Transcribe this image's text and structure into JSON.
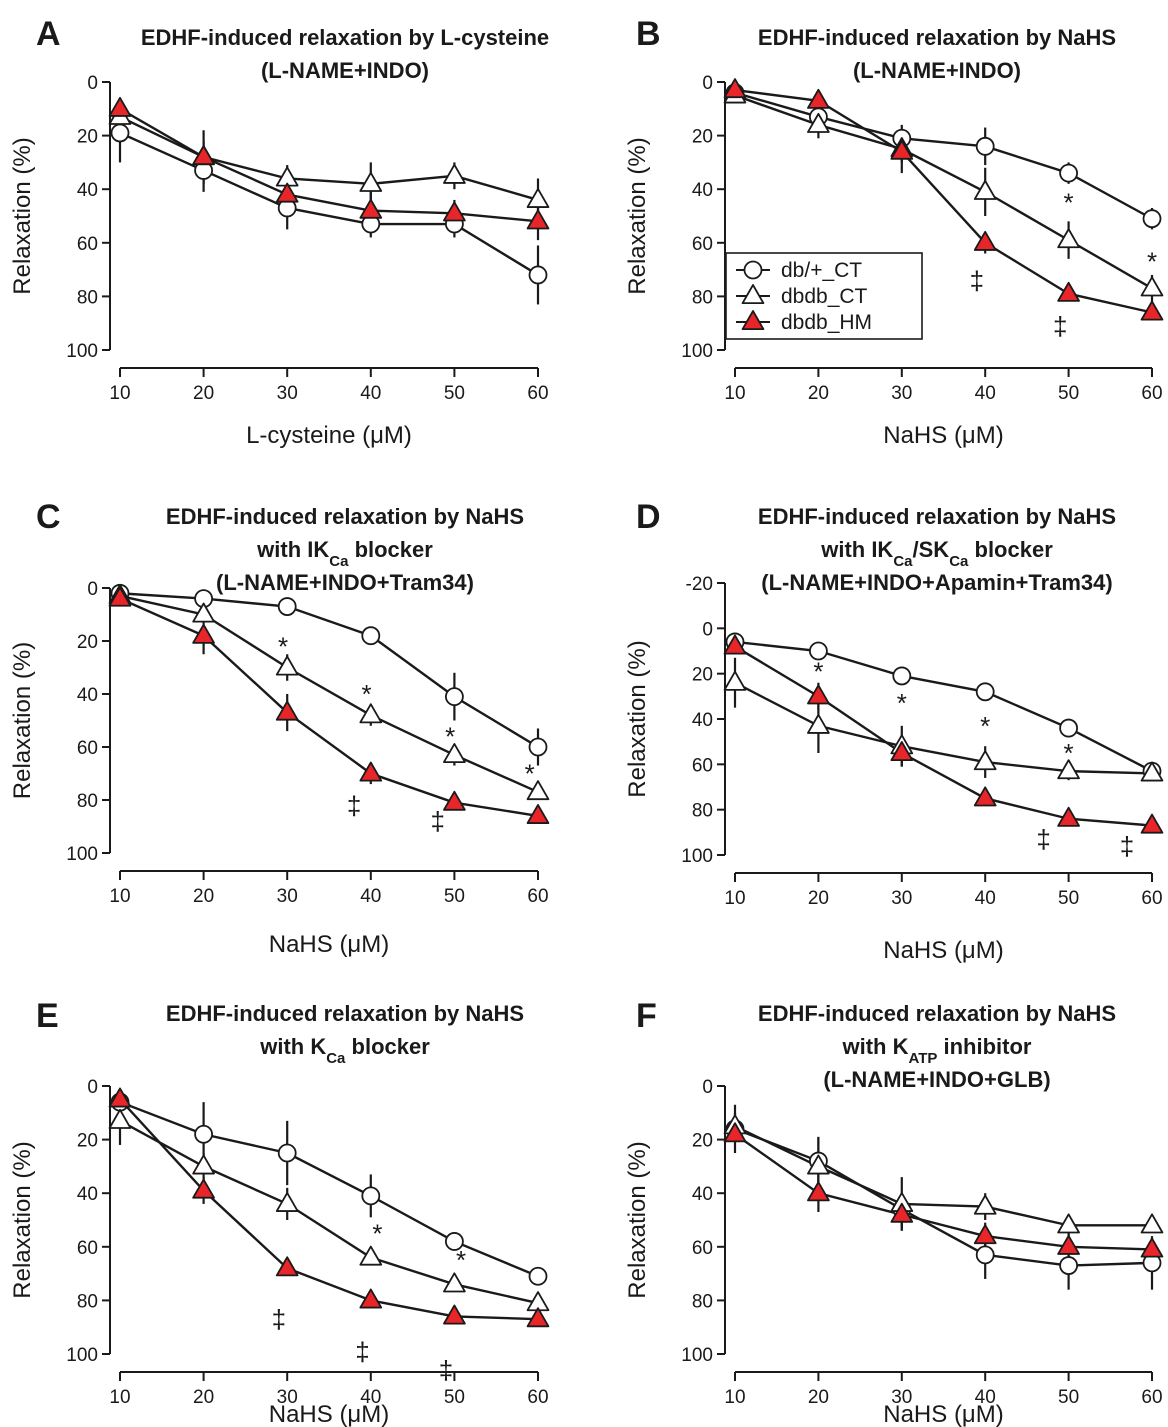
{
  "legend": {
    "entries": [
      {
        "label": "db/+_CT",
        "marker": "circle"
      },
      {
        "label": "dbdb_CT",
        "marker": "triangle-open"
      },
      {
        "label": "dbdb_HM",
        "marker": "triangle-filled"
      }
    ]
  },
  "colors": {
    "filled_marker": "#e8262a",
    "open_marker": "#ffffff",
    "line": "#1a1a1a"
  },
  "chart_data": [
    {
      "panel": "A",
      "type": "line",
      "title": [
        "EDHF-induced relaxation by L-cysteine",
        "(L-NAME+INDO)"
      ],
      "xlabel": "L-cysteine (μM)",
      "ylabel": "Relaxation (%)",
      "x": [
        10,
        20,
        30,
        40,
        50,
        60
      ],
      "xlim": [
        10,
        60
      ],
      "ylim": [
        0,
        100
      ],
      "yticks": [
        0,
        20,
        40,
        60,
        80,
        100
      ],
      "y_inverted": true,
      "series": [
        {
          "name": "db/+_CT",
          "marker": "circle",
          "values": [
            19,
            33,
            47,
            53,
            53,
            72
          ],
          "errors": [
            11,
            8,
            8,
            5,
            5,
            11
          ]
        },
        {
          "name": "dbdb_CT",
          "marker": "triangle-open",
          "values": [
            13,
            28,
            36,
            38,
            35,
            44
          ],
          "errors": [
            5,
            6,
            5,
            8,
            5,
            8
          ]
        },
        {
          "name": "dbdb_HM",
          "marker": "triangle-filled",
          "values": [
            10,
            28,
            42,
            48,
            49,
            52
          ],
          "errors": [
            2,
            10,
            6,
            7,
            5,
            7
          ]
        }
      ],
      "annotations": []
    },
    {
      "panel": "B",
      "type": "line",
      "title": [
        "EDHF-induced relaxation by NaHS",
        "(L-NAME+INDO)"
      ],
      "xlabel": "NaHS (μM)",
      "ylabel": "Relaxation (%)",
      "x": [
        10,
        20,
        30,
        40,
        50,
        60
      ],
      "xlim": [
        10,
        60
      ],
      "ylim": [
        0,
        100
      ],
      "yticks": [
        0,
        20,
        40,
        60,
        80,
        100
      ],
      "y_inverted": true,
      "series": [
        {
          "name": "db/+_CT",
          "marker": "circle",
          "values": [
            4,
            13,
            21,
            24,
            34,
            51
          ],
          "errors": [
            3,
            5,
            5,
            7,
            4,
            4
          ]
        },
        {
          "name": "dbdb_CT",
          "marker": "triangle-open",
          "values": [
            5,
            16,
            25,
            41,
            59,
            77
          ],
          "errors": [
            3,
            5,
            5,
            9,
            7,
            5
          ]
        },
        {
          "name": "dbdb_HM",
          "marker": "triangle-filled",
          "values": [
            3,
            7,
            26,
            60,
            79,
            86
          ],
          "errors": [
            2,
            2,
            8,
            4,
            2,
            2
          ]
        }
      ],
      "annotations": [
        {
          "text": "*",
          "x": 50,
          "y": 45
        },
        {
          "text": "*",
          "x": 60,
          "y": 67
        },
        {
          "text": "‡",
          "x": 39,
          "y": 74
        },
        {
          "text": "‡",
          "x": 49,
          "y": 91
        }
      ]
    },
    {
      "panel": "C",
      "type": "line",
      "title": [
        "EDHF-induced relaxation by NaHS",
        "with IK_Ca blocker",
        "(L-NAME+INDO+Tram34)"
      ],
      "xlabel": "NaHS (μM)",
      "ylabel": "Relaxation (%)",
      "x": [
        10,
        20,
        30,
        40,
        50,
        60
      ],
      "xlim": [
        10,
        60
      ],
      "ylim": [
        0,
        100
      ],
      "yticks": [
        0,
        20,
        40,
        60,
        80,
        100
      ],
      "y_inverted": true,
      "series": [
        {
          "name": "db/+_CT",
          "marker": "circle",
          "values": [
            2,
            4,
            7,
            18,
            41,
            60
          ],
          "errors": [
            1,
            1,
            2,
            3,
            9,
            7
          ]
        },
        {
          "name": "dbdb_CT",
          "marker": "triangle-open",
          "values": [
            3,
            10,
            30,
            48,
            63,
            77
          ],
          "errors": [
            1,
            3,
            5,
            4,
            4,
            3
          ]
        },
        {
          "name": "dbdb_HM",
          "marker": "triangle-filled",
          "values": [
            4,
            18,
            47,
            70,
            81,
            86
          ],
          "errors": [
            1,
            7,
            7,
            4,
            2,
            2
          ]
        }
      ],
      "annotations": [
        {
          "text": "*",
          "x": 29.5,
          "y": 22
        },
        {
          "text": "*",
          "x": 39.5,
          "y": 40
        },
        {
          "text": "*",
          "x": 49.5,
          "y": 56
        },
        {
          "text": "*",
          "x": 59,
          "y": 70
        },
        {
          "text": "‡",
          "x": 38,
          "y": 82
        },
        {
          "text": "‡",
          "x": 48,
          "y": 88
        }
      ]
    },
    {
      "panel": "D",
      "type": "line",
      "title": [
        "EDHF-induced relaxation by NaHS",
        "with IK_Ca/SK_Ca blocker",
        "(L-NAME+INDO+Apamin+Tram34)"
      ],
      "xlabel": "NaHS (μM)",
      "ylabel": "Relaxation (%)",
      "x": [
        10,
        20,
        30,
        40,
        50,
        60
      ],
      "xlim": [
        10,
        60
      ],
      "ylim": [
        -20,
        100
      ],
      "yticks": [
        -20,
        0,
        20,
        40,
        60,
        80,
        100
      ],
      "y_inverted": true,
      "series": [
        {
          "name": "db/+_CT",
          "marker": "circle",
          "values": [
            6,
            10,
            21,
            28,
            44,
            63
          ],
          "errors": [
            2,
            2,
            2,
            2,
            2,
            3
          ]
        },
        {
          "name": "dbdb_CT",
          "marker": "triangle-open",
          "values": [
            24,
            43,
            52,
            59,
            63,
            64
          ],
          "errors": [
            11,
            12,
            9,
            7,
            4,
            3
          ]
        },
        {
          "name": "dbdb_HM",
          "marker": "triangle-filled",
          "values": [
            8,
            30,
            55,
            75,
            84,
            87
          ],
          "errors": [
            3,
            6,
            6,
            2,
            2,
            1
          ]
        }
      ],
      "annotations": [
        {
          "text": "*",
          "x": 20,
          "y": 19
        },
        {
          "text": "*",
          "x": 30,
          "y": 33
        },
        {
          "text": "*",
          "x": 40,
          "y": 43
        },
        {
          "text": "*",
          "x": 50,
          "y": 55
        },
        {
          "text": "‡",
          "x": 47,
          "y": 93
        },
        {
          "text": "‡",
          "x": 57,
          "y": 96
        }
      ]
    },
    {
      "panel": "E",
      "type": "line",
      "title": [
        "EDHF-induced relaxation by NaHS",
        "with K_Ca blocker"
      ],
      "xlabel": "NaHS (μM)",
      "ylabel": "Relaxation (%)",
      "x": [
        10,
        20,
        30,
        40,
        50,
        60
      ],
      "xlim": [
        10,
        60
      ],
      "ylim": [
        0,
        100
      ],
      "yticks": [
        0,
        20,
        40,
        60,
        80,
        100
      ],
      "y_inverted": true,
      "series": [
        {
          "name": "db/+_CT",
          "marker": "circle",
          "values": [
            6,
            18,
            25,
            41,
            58,
            71
          ],
          "errors": [
            3,
            12,
            12,
            8,
            3,
            3
          ]
        },
        {
          "name": "dbdb_CT",
          "marker": "triangle-open",
          "values": [
            13,
            30,
            44,
            64,
            74,
            81
          ],
          "errors": [
            9,
            5,
            6,
            3,
            2,
            2
          ]
        },
        {
          "name": "dbdb_HM",
          "marker": "triangle-filled",
          "values": [
            5,
            39,
            68,
            80,
            86,
            87
          ],
          "errors": [
            2,
            5,
            2,
            2,
            1,
            1
          ]
        }
      ],
      "annotations": [
        {
          "text": "*",
          "x": 40.8,
          "y": 55
        },
        {
          "text": "*",
          "x": 50.8,
          "y": 65
        },
        {
          "text": "‡",
          "x": 29,
          "y": 87
        },
        {
          "text": "‡",
          "x": 39,
          "y": 99
        },
        {
          "text": "‡",
          "x": 49,
          "y": 106
        }
      ]
    },
    {
      "panel": "F",
      "type": "line",
      "title": [
        "EDHF-induced relaxation by NaHS",
        "with K_ATP inhibitor",
        "(L-NAME+INDO+GLB)"
      ],
      "xlabel": "NaHS (μM)",
      "ylabel": "Relaxation (%)",
      "x": [
        10,
        20,
        30,
        40,
        50,
        60
      ],
      "xlim": [
        10,
        60
      ],
      "ylim": [
        0,
        100
      ],
      "yticks": [
        0,
        20,
        40,
        60,
        80,
        100
      ],
      "y_inverted": true,
      "series": [
        {
          "name": "db/+_CT",
          "marker": "circle",
          "values": [
            16,
            28,
            46,
            63,
            67,
            66
          ],
          "errors": [
            9,
            9,
            6,
            9,
            9,
            10
          ]
        },
        {
          "name": "dbdb_CT",
          "marker": "triangle-open",
          "values": [
            15,
            30,
            44,
            45,
            52,
            52
          ],
          "errors": [
            5,
            11,
            10,
            5,
            4,
            2
          ]
        },
        {
          "name": "dbdb_HM",
          "marker": "triangle-filled",
          "values": [
            18,
            40,
            48,
            56,
            60,
            61
          ],
          "errors": [
            2,
            7,
            6,
            5,
            5,
            3
          ]
        }
      ],
      "annotations": []
    }
  ]
}
